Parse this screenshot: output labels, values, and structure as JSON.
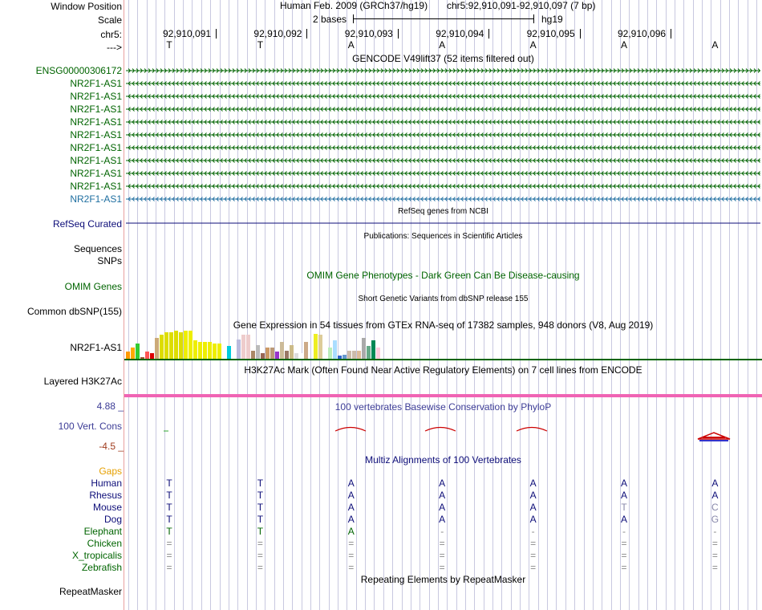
{
  "colors": {
    "gene_green": "#006400",
    "refseq_navy": "#0c0c78",
    "ncbi_blue": "#1e6ea0",
    "phylop_blue": "#3c3c96",
    "gaps_orange": "#e6a000",
    "h3k27ac_pink": "#f064b4",
    "cons_red": "#cc0000",
    "grid": "#c8c8e0"
  },
  "header": {
    "window_position_label": "Window Position",
    "assembly": "Human Feb. 2009 (GRCh37/hg19)",
    "position": "chr5:92,910,091-92,910,097 (7 bp)",
    "scale_label": "Scale",
    "scale_bar_text": "2 bases",
    "scale_db": "hg19",
    "chrom_label": "chr5:",
    "strand_label": "--->"
  },
  "ruler": {
    "positions": [
      "92,910,091",
      "92,910,092",
      "92,910,093",
      "92,910,094",
      "92,910,095",
      "92,910,096"
    ],
    "bases": [
      "T",
      "T",
      "A",
      "A",
      "A",
      "A",
      "A"
    ]
  },
  "gencode": {
    "title": "GENCODE V49lift37 (52 items filtered out)",
    "items": [
      {
        "name": "ENSG00000306172",
        "strand": "+"
      },
      {
        "name": "NR2F1-AS1",
        "strand": "-"
      },
      {
        "name": "NR2F1-AS1",
        "strand": "-"
      },
      {
        "name": "NR2F1-AS1",
        "strand": "-"
      },
      {
        "name": "NR2F1-AS1",
        "strand": "-"
      },
      {
        "name": "NR2F1-AS1",
        "strand": "-"
      },
      {
        "name": "NR2F1-AS1",
        "strand": "-"
      },
      {
        "name": "NR2F1-AS1",
        "strand": "-"
      },
      {
        "name": "NR2F1-AS1",
        "strand": "-"
      },
      {
        "name": "NR2F1-AS1",
        "strand": "-"
      },
      {
        "name": "NR2F1-AS1",
        "strand": "-"
      }
    ]
  },
  "refseq": {
    "title": "RefSeq genes from NCBI",
    "label": "RefSeq Curated"
  },
  "publications": {
    "title": "Publications: Sequences in Scientific Articles",
    "label_sequences": "Sequences",
    "label_snps": "SNPs"
  },
  "omim": {
    "title": "OMIM Gene Phenotypes - Dark Green Can Be Disease-causing",
    "label": "OMIM Genes"
  },
  "dbsnp": {
    "title": "Short Genetic Variants from dbSNP release 155",
    "label": "Common dbSNP(155)"
  },
  "gtex": {
    "title": "Gene Expression in 54 tissues from GTEx RNA-seq of 17382 samples, 948 donors (V8, Aug 2019)",
    "label": "NR2F1-AS1",
    "tissue_levels": [
      0.25,
      0.4,
      0.55,
      0.05,
      0.25,
      0.2,
      0.75,
      0.85,
      0.95,
      0.95,
      1.0,
      0.95,
      1.0,
      1.0,
      0.65,
      0.6,
      0.6,
      0.6,
      0.55,
      0.55,
      0.0,
      0.45,
      0.0,
      0.7,
      0.85,
      0.85,
      0.3,
      0.5,
      0.2,
      0.4,
      0.4,
      0.25,
      0.6,
      0.3,
      0.5,
      0.2,
      0.2,
      0.6,
      0.0,
      0.9,
      0.85,
      0.12,
      0.4,
      0.65,
      0.12,
      0.15,
      0.3,
      0.3,
      0.3,
      0.75,
      0.45,
      0.65,
      0.4,
      0.0
    ],
    "tissue_colors": [
      "#ff9900",
      "#ffaa00",
      "#33cc33",
      "#995533",
      "#ff5555",
      "#dd0000",
      "#ccaa77",
      "#dddd00",
      "#dddd00",
      "#dddd00",
      "#dddd00",
      "#dddd00",
      "#eeee00",
      "#eeee00",
      "#eeee00",
      "#eeee00",
      "#eeee00",
      "#eeee00",
      "#eeee00",
      "#eeee00",
      "#ffffff",
      "#00ccdd",
      "#ffffff",
      "#bbbbdd",
      "#eecccc",
      "#eecccc",
      "#aa8866",
      "#bbbbbb",
      "#996655",
      "#cc9966",
      "#bb9977",
      "#9933cc",
      "#ccbb99",
      "#997766",
      "#ccbb88",
      "#dddddd",
      "#ffffff",
      "#ccaa88",
      "#ffffff",
      "#eeee22",
      "#ddcc99",
      "#ffffff",
      "#bbeebb",
      "#aaddff",
      "#3366cc",
      "#6699cc",
      "#ccbbaa",
      "#ccbbaa",
      "#ddbb99",
      "#aaaaaa",
      "#66aa88",
      "#008855",
      "#ffccdd",
      "#ffffff"
    ]
  },
  "h3k27ac": {
    "title": "H3K27Ac Mark (Often Found Near Active Regulatory Elements) on 7 cell lines from ENCODE",
    "label": "Layered H3K27Ac"
  },
  "phylop": {
    "title": "100 vertebrates Basewise Conservation by PhyloP",
    "label": "100 Vert. Cons",
    "max_label": "4.88 _",
    "min_label": "-4.5 _",
    "range": [
      -4.5,
      4.88
    ]
  },
  "multiz": {
    "title": "Multiz Alignments of 100 Vertebrates",
    "gaps_label": "Gaps",
    "species": [
      {
        "name": "Human",
        "bases": [
          "T",
          "T",
          "A",
          "A",
          "A",
          "A",
          "A"
        ]
      },
      {
        "name": "Rhesus",
        "bases": [
          "T",
          "T",
          "A",
          "A",
          "A",
          "A",
          "A"
        ]
      },
      {
        "name": "Mouse",
        "bases": [
          "T",
          "T",
          "A",
          "A",
          "A",
          "T",
          "C"
        ]
      },
      {
        "name": "Dog",
        "bases": [
          "T",
          "T",
          "A",
          "A",
          "A",
          "A",
          "G"
        ]
      },
      {
        "name": "Elephant",
        "bases": [
          "T",
          "T",
          "A",
          "-",
          "-",
          "-",
          "-"
        ]
      },
      {
        "name": "Chicken",
        "bases": [
          "=",
          "=",
          "=",
          "=",
          "=",
          "=",
          "="
        ]
      },
      {
        "name": "X_tropicalis",
        "bases": [
          "=",
          "=",
          "=",
          "=",
          "=",
          "=",
          "="
        ]
      },
      {
        "name": "Zebrafish",
        "bases": [
          "=",
          "=",
          "=",
          "=",
          "=",
          "=",
          "="
        ]
      }
    ]
  },
  "repeatmasker": {
    "title": "Repeating Elements by RepeatMasker",
    "label": "RepeatMasker"
  }
}
